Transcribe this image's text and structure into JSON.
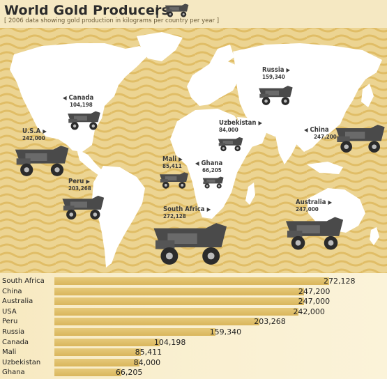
{
  "title": "World Gold Producers",
  "title_separator": "|",
  "subtitle": "[ 2006 data showing gold production in kilograms per country  per year ]",
  "colors": {
    "background": "#ebd38c",
    "wave": "#e2c170",
    "land": "#ffffff",
    "bar": "#dcbb62",
    "truck": "#3c3c3c"
  },
  "icons": {
    "truck": "dump-truck-icon"
  },
  "map_labels": [
    {
      "key": "russia",
      "name": "Russia",
      "value": "159,340",
      "arrow": "▶"
    },
    {
      "key": "canada",
      "name": "Canada",
      "value": "104,198",
      "arrow": "◀"
    },
    {
      "key": "usa",
      "name": "U.S.A",
      "value": "242,000",
      "arrow": "▶"
    },
    {
      "key": "uzbekistan",
      "name": "Uzbekistan",
      "value": "84,000",
      "arrow": "▶"
    },
    {
      "key": "china",
      "name": "China",
      "value": "247,200",
      "arrow": "◀"
    },
    {
      "key": "mali",
      "name": "Mali",
      "value": "85,411",
      "arrow": "▶"
    },
    {
      "key": "ghana",
      "name": "Ghana",
      "value": "66,205",
      "arrow": "◀"
    },
    {
      "key": "peru",
      "name": "Peru",
      "value": "203,268",
      "arrow": "▶"
    },
    {
      "key": "south_africa",
      "name": "South Africa",
      "value": "272,128",
      "arrow": "▶"
    },
    {
      "key": "australia",
      "name": "Australia",
      "value": "247,000",
      "arrow": "▶"
    }
  ],
  "chart_data": {
    "type": "bar",
    "orientation": "horizontal",
    "title": "World Gold Producers",
    "subtitle": "[ 2006 data showing gold production in kilograms per country  per year ]",
    "categories": [
      "South Africa",
      "China",
      "Australia",
      "USA",
      "Peru",
      "Russia",
      "Canada",
      "Mali",
      "Uzbekistan",
      "Ghana"
    ],
    "values": [
      272128,
      247200,
      247000,
      242000,
      203268,
      159340,
      104198,
      85411,
      84000,
      66205
    ],
    "value_labels": [
      "272,128",
      "247,200",
      "247,000",
      "242,000",
      "203,268",
      "159,340",
      "104,198",
      "85,411",
      "84,000",
      "66,205"
    ],
    "xlabel": "",
    "ylabel": "",
    "legend": "none",
    "grid": false
  }
}
